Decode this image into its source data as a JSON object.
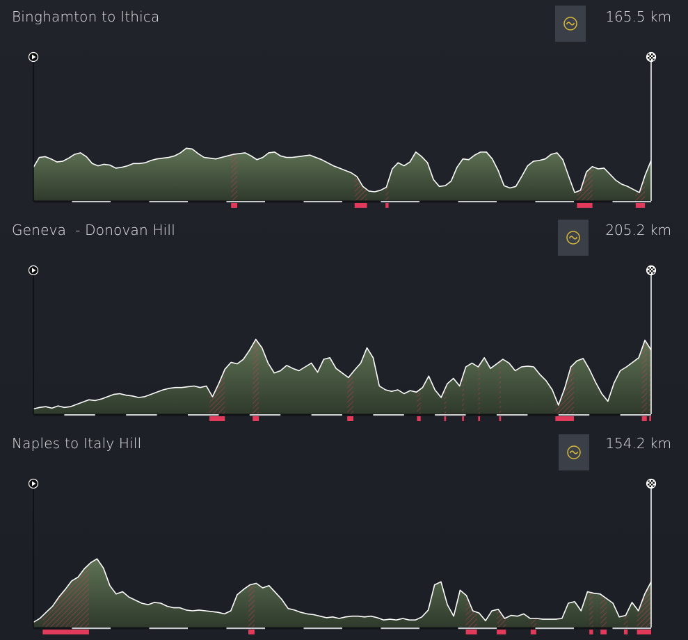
{
  "stages": [
    {
      "title": "Binghamton to Ithica",
      "distance": "165.5 km",
      "type_icon": "hilly-stage-icon",
      "elevation": [
        0.42,
        0.55,
        0.56,
        0.53,
        0.49,
        0.5,
        0.54,
        0.59,
        0.61,
        0.56,
        0.47,
        0.44,
        0.46,
        0.45,
        0.41,
        0.42,
        0.44,
        0.47,
        0.47,
        0.48,
        0.51,
        0.53,
        0.54,
        0.55,
        0.57,
        0.61,
        0.67,
        0.66,
        0.6,
        0.55,
        0.54,
        0.53,
        0.55,
        0.57,
        0.59,
        0.6,
        0.61,
        0.57,
        0.52,
        0.55,
        0.61,
        0.62,
        0.57,
        0.55,
        0.55,
        0.56,
        0.57,
        0.58,
        0.55,
        0.52,
        0.48,
        0.44,
        0.41,
        0.38,
        0.35,
        0.3,
        0.17,
        0.11,
        0.1,
        0.12,
        0.16,
        0.4,
        0.48,
        0.44,
        0.49,
        0.62,
        0.56,
        0.48,
        0.26,
        0.17,
        0.18,
        0.24,
        0.42,
        0.53,
        0.52,
        0.58,
        0.62,
        0.62,
        0.53,
        0.38,
        0.18,
        0.15,
        0.17,
        0.3,
        0.44,
        0.5,
        0.51,
        0.53,
        0.59,
        0.61,
        0.52,
        0.3,
        0.09,
        0.12,
        0.36,
        0.43,
        0.4,
        0.41,
        0.33,
        0.25,
        0.2,
        0.17,
        0.13,
        0.09,
        0.32,
        0.51
      ],
      "climbs": [
        [
          0.32,
          0.33
        ],
        [
          0.52,
          0.54
        ],
        [
          0.57,
          0.575
        ],
        [
          0.88,
          0.905
        ],
        [
          0.975,
          0.99
        ]
      ],
      "km_marks": 16,
      "colors": {
        "fill": "#4d5e45",
        "line": "#ffffff",
        "climb": "#e23a5a"
      }
    },
    {
      "title": "Geneva  - Donovan Hill",
      "distance": "205.2 km",
      "type_icon": "hilly-stage-icon",
      "elevation": [
        0.05,
        0.07,
        0.08,
        0.06,
        0.09,
        0.07,
        0.08,
        0.11,
        0.14,
        0.17,
        0.16,
        0.18,
        0.21,
        0.24,
        0.25,
        0.23,
        0.22,
        0.2,
        0.21,
        0.24,
        0.27,
        0.3,
        0.32,
        0.33,
        0.33,
        0.34,
        0.35,
        0.33,
        0.35,
        0.21,
        0.38,
        0.57,
        0.66,
        0.64,
        0.7,
        0.82,
        0.96,
        0.85,
        0.65,
        0.52,
        0.55,
        0.62,
        0.58,
        0.55,
        0.6,
        0.65,
        0.53,
        0.7,
        0.72,
        0.58,
        0.52,
        0.46,
        0.56,
        0.65,
        0.85,
        0.72,
        0.35,
        0.3,
        0.28,
        0.3,
        0.25,
        0.29,
        0.27,
        0.33,
        0.48,
        0.3,
        0.2,
        0.38,
        0.45,
        0.35,
        0.6,
        0.65,
        0.6,
        0.72,
        0.58,
        0.64,
        0.7,
        0.65,
        0.55,
        0.6,
        0.61,
        0.6,
        0.5,
        0.42,
        0.3,
        0.1,
        0.32,
        0.6,
        0.68,
        0.71,
        0.57,
        0.4,
        0.25,
        0.15,
        0.39,
        0.55,
        0.6,
        0.66,
        0.72,
        0.95,
        0.82
      ],
      "climbs": [
        [
          0.285,
          0.31
        ],
        [
          0.355,
          0.365
        ],
        [
          0.508,
          0.518
        ],
        [
          0.621,
          0.627
        ],
        [
          0.665,
          0.668
        ],
        [
          0.694,
          0.697
        ],
        [
          0.72,
          0.723
        ],
        [
          0.754,
          0.757
        ],
        [
          0.845,
          0.875
        ],
        [
          0.985,
          0.993
        ],
        [
          0.997,
          1.0
        ]
      ],
      "km_marks": 20,
      "colors": {
        "fill": "#4d5e45",
        "line": "#ffffff",
        "climb": "#e23a5a"
      }
    },
    {
      "title": "Naples to Italy Hill",
      "distance": "154.2 km",
      "type_icon": "hilly-stage-icon",
      "elevation": [
        0.05,
        0.1,
        0.18,
        0.26,
        0.38,
        0.48,
        0.59,
        0.64,
        0.75,
        0.83,
        0.88,
        0.76,
        0.53,
        0.42,
        0.45,
        0.38,
        0.34,
        0.3,
        0.28,
        0.31,
        0.3,
        0.26,
        0.24,
        0.24,
        0.21,
        0.2,
        0.21,
        0.2,
        0.19,
        0.18,
        0.16,
        0.2,
        0.41,
        0.48,
        0.54,
        0.56,
        0.5,
        0.53,
        0.44,
        0.35,
        0.23,
        0.21,
        0.18,
        0.16,
        0.15,
        0.13,
        0.11,
        0.12,
        0.1,
        0.12,
        0.13,
        0.13,
        0.12,
        0.13,
        0.11,
        0.08,
        0.09,
        0.08,
        0.1,
        0.08,
        0.08,
        0.12,
        0.21,
        0.54,
        0.58,
        0.28,
        0.13,
        0.47,
        0.4,
        0.2,
        0.17,
        0.07,
        0.2,
        0.22,
        0.1,
        0.14,
        0.13,
        0.16,
        0.1,
        0.1,
        0.09,
        0.09,
        0.09,
        0.1,
        0.3,
        0.32,
        0.2,
        0.45,
        0.43,
        0.42,
        0.36,
        0.3,
        0.12,
        0.14,
        0.31,
        0.2,
        0.42,
        0.58
      ],
      "climbs": [
        [
          0.015,
          0.09
        ],
        [
          0.348,
          0.358
        ],
        [
          0.7,
          0.718
        ],
        [
          0.75,
          0.765
        ],
        [
          0.805,
          0.814
        ],
        [
          0.9,
          0.906
        ],
        [
          0.918,
          0.928
        ],
        [
          0.956,
          0.962
        ],
        [
          0.977,
          1.0
        ]
      ],
      "km_marks": 16,
      "colors": {
        "fill": "#4d5e45",
        "line": "#ffffff",
        "climb": "#e23a5a"
      }
    }
  ]
}
